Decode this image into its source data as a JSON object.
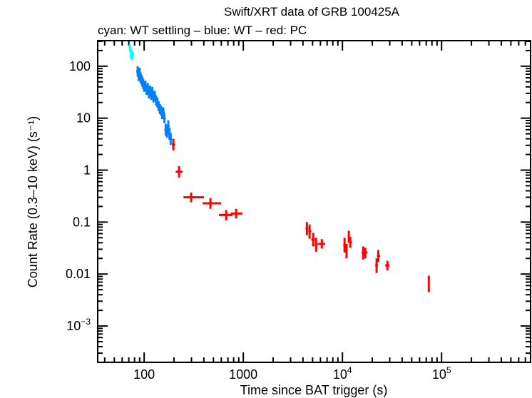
{
  "chart_data": {
    "type": "scatter",
    "title": "Swift/XRT data of GRB 100425A",
    "subtitle": "cyan: WT settling – blue: WT – red: PC",
    "xlabel": "Time since BAT trigger (s)",
    "ylabel": "Count Rate (0.3–10 keV) (s⁻¹)",
    "xscale": "log",
    "yscale": "log",
    "xlim": [
      34,
      790000
    ],
    "ylim": [
      0.0002,
      310
    ],
    "grid": false,
    "x_ticks": [
      {
        "value": 100,
        "label": "100",
        "exp": ""
      },
      {
        "value": 1000,
        "label": "1000",
        "exp": ""
      },
      {
        "value": 10000,
        "label": "10",
        "exp": "4"
      },
      {
        "value": 100000,
        "label": "10",
        "exp": "5"
      }
    ],
    "y_ticks": [
      {
        "value": 100,
        "label": "100",
        "exp": ""
      },
      {
        "value": 10,
        "label": "10",
        "exp": ""
      },
      {
        "value": 1,
        "label": "1",
        "exp": ""
      },
      {
        "value": 0.1,
        "label": "0.1",
        "exp": ""
      },
      {
        "value": 0.01,
        "label": "0.01",
        "exp": ""
      },
      {
        "value": 0.001,
        "label": "10",
        "exp": "−3"
      }
    ],
    "series": [
      {
        "name": "WT settling",
        "color": "#00ffff",
        "points": [
          [
            72,
            230,
            0.15
          ],
          [
            73,
            200,
            0.15
          ],
          [
            74,
            160,
            0.15
          ],
          [
            75,
            150,
            0.15
          ],
          [
            76,
            170,
            0.15
          ]
        ]
      },
      {
        "name": "WT",
        "color": "#0080ff",
        "points": [
          [
            86,
            80,
            0.25
          ],
          [
            88,
            65,
            0.25
          ],
          [
            90,
            75,
            0.25
          ],
          [
            92,
            60,
            0.25
          ],
          [
            94,
            55,
            0.25
          ],
          [
            96,
            50,
            0.25
          ],
          [
            98,
            45,
            0.25
          ],
          [
            100,
            40,
            0.25
          ],
          [
            103,
            42,
            0.25
          ],
          [
            106,
            35,
            0.25
          ],
          [
            109,
            38,
            0.25
          ],
          [
            112,
            30,
            0.25
          ],
          [
            115,
            34,
            0.25
          ],
          [
            118,
            28,
            0.25
          ],
          [
            121,
            32,
            0.25
          ],
          [
            124,
            25,
            0.25
          ],
          [
            128,
            27,
            0.25
          ],
          [
            132,
            22,
            0.25
          ],
          [
            136,
            20,
            0.25
          ],
          [
            140,
            17,
            0.25
          ],
          [
            144,
            15,
            0.25
          ],
          [
            148,
            14,
            0.25
          ],
          [
            152,
            12,
            0.25
          ],
          [
            156,
            13,
            0.25
          ],
          [
            160,
            10,
            0.25
          ],
          [
            165,
            6,
            0.3
          ],
          [
            170,
            5.5,
            0.3
          ],
          [
            175,
            7,
            0.3
          ],
          [
            180,
            5,
            0.3
          ],
          [
            185,
            4,
            0.3
          ]
        ]
      },
      {
        "name": "PC",
        "color": "#ff0000",
        "points": [
          {
            "t": 197,
            "t_lo": 190,
            "t_hi": 205,
            "rate": 3.1,
            "r_lo": 2.4,
            "r_hi": 4.0
          },
          {
            "t": 225,
            "t_lo": 208,
            "t_hi": 245,
            "rate": 0.93,
            "r_lo": 0.72,
            "r_hi": 1.2
          },
          {
            "t": 298,
            "t_lo": 249,
            "t_hi": 402,
            "rate": 0.3,
            "r_lo": 0.24,
            "r_hi": 0.37
          },
          {
            "t": 466,
            "t_lo": 389,
            "t_hi": 598,
            "rate": 0.23,
            "r_lo": 0.18,
            "r_hi": 0.29
          },
          {
            "t": 672,
            "t_lo": 568,
            "t_hi": 780,
            "rate": 0.137,
            "r_lo": 0.108,
            "r_hi": 0.17
          },
          {
            "t": 847,
            "t_lo": 750,
            "t_hi": 980,
            "rate": 0.146,
            "r_lo": 0.118,
            "r_hi": 0.18
          },
          {
            "t": 4380,
            "t_lo": 4250,
            "t_hi": 4520,
            "rate": 0.076,
            "r_lo": 0.056,
            "r_hi": 0.1
          },
          {
            "t": 4660,
            "t_lo": 4520,
            "t_hi": 4850,
            "rate": 0.067,
            "r_lo": 0.048,
            "r_hi": 0.09
          },
          {
            "t": 5070,
            "t_lo": 4850,
            "t_hi": 5250,
            "rate": 0.046,
            "r_lo": 0.034,
            "r_hi": 0.062
          },
          {
            "t": 5420,
            "t_lo": 5250,
            "t_hi": 5650,
            "rate": 0.037,
            "r_lo": 0.027,
            "r_hi": 0.05
          },
          {
            "t": 6190,
            "t_lo": 5700,
            "t_hi": 6700,
            "rate": 0.038,
            "r_lo": 0.031,
            "r_hi": 0.047
          },
          {
            "t": 10500,
            "t_lo": 10200,
            "t_hi": 10800,
            "rate": 0.036,
            "r_lo": 0.026,
            "r_hi": 0.05
          },
          {
            "t": 11000,
            "t_lo": 10800,
            "t_hi": 11300,
            "rate": 0.028,
            "r_lo": 0.02,
            "r_hi": 0.038
          },
          {
            "t": 11600,
            "t_lo": 11300,
            "t_hi": 11800,
            "rate": 0.053,
            "r_lo": 0.04,
            "r_hi": 0.068
          },
          {
            "t": 12000,
            "t_lo": 11800,
            "t_hi": 12500,
            "rate": 0.041,
            "r_lo": 0.032,
            "r_hi": 0.052
          },
          {
            "t": 16200,
            "t_lo": 15600,
            "t_hi": 16800,
            "rate": 0.026,
            "r_lo": 0.019,
            "r_hi": 0.034
          },
          {
            "t": 17000,
            "t_lo": 16400,
            "t_hi": 17900,
            "rate": 0.026,
            "r_lo": 0.02,
            "r_hi": 0.032
          },
          {
            "t": 22100,
            "t_lo": 21400,
            "t_hi": 22800,
            "rate": 0.0147,
            "r_lo": 0.0105,
            "r_hi": 0.02
          },
          {
            "t": 23000,
            "t_lo": 22300,
            "t_hi": 24000,
            "rate": 0.0225,
            "r_lo": 0.017,
            "r_hi": 0.029
          },
          {
            "t": 28400,
            "t_lo": 27000,
            "t_hi": 29900,
            "rate": 0.0147,
            "r_lo": 0.0118,
            "r_hi": 0.018
          },
          {
            "t": 74300,
            "t_lo": 73500,
            "t_hi": 75200,
            "rate": 0.0065,
            "r_lo": 0.0045,
            "r_hi": 0.0093
          }
        ]
      }
    ]
  }
}
